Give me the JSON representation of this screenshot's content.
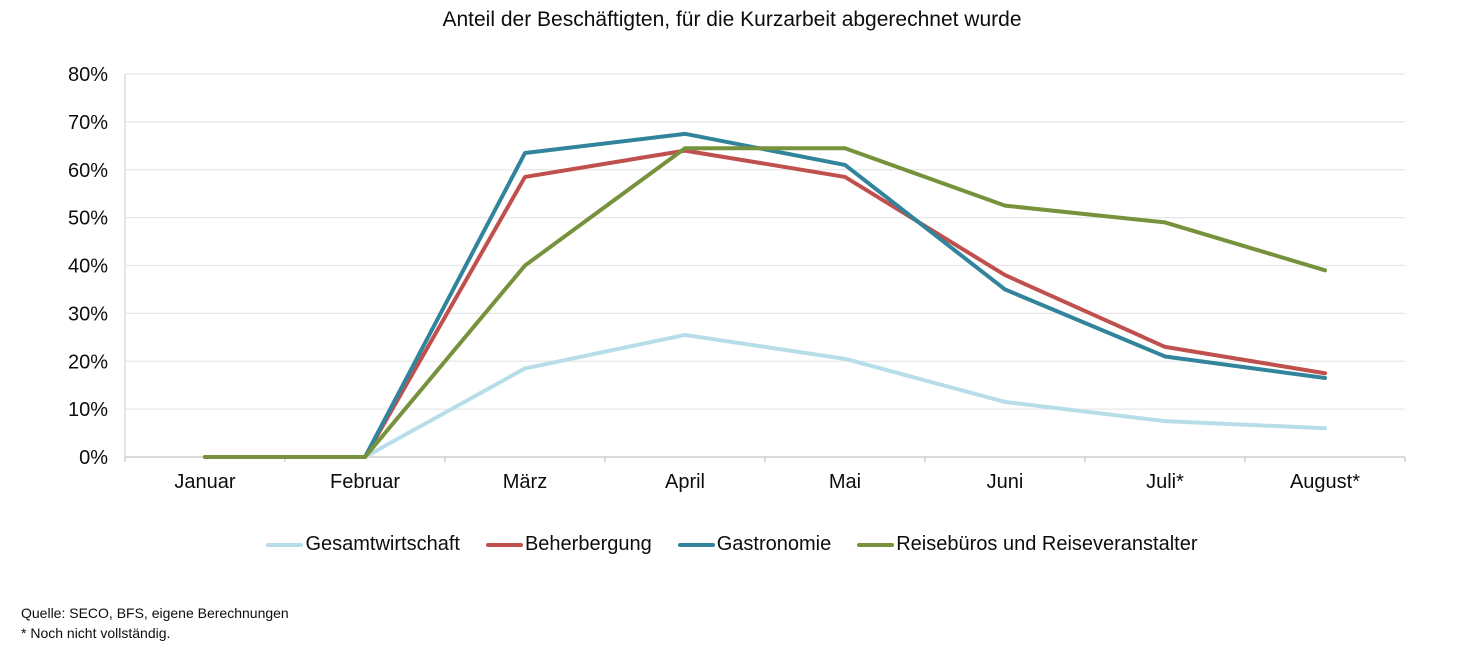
{
  "title": "Anteil der Beschäftigten, für die Kurzarbeit abgerechnet wurde",
  "chart_data": {
    "type": "line",
    "title": "Anteil der Beschäftigten, für die Kurzarbeit abgerechnet wurde",
    "categories": [
      "Januar",
      "Februar",
      "März",
      "April",
      "Mai",
      "Juni",
      "Juli*",
      "August*"
    ],
    "series": [
      {
        "name": "Gesamtwirtschaft",
        "color": "#b7dee8",
        "values": [
          0,
          0,
          18.5,
          25.5,
          20.5,
          11.5,
          7.5,
          6
        ]
      },
      {
        "name": "Beherbergung",
        "color": "#c0504d",
        "values": [
          0,
          0,
          58.5,
          64,
          58.5,
          38,
          23,
          17.5
        ]
      },
      {
        "name": "Gastronomie",
        "color": "#31849b",
        "values": [
          0,
          0,
          63.5,
          67.5,
          61,
          35,
          21,
          16.5
        ]
      },
      {
        "name": "Reisebüros und Reiseveranstalter",
        "color": "#76923c",
        "values": [
          0,
          0,
          40,
          64.5,
          64.5,
          52.5,
          49,
          39
        ]
      }
    ],
    "ylim": [
      0,
      80
    ],
    "y_tick_step": 10,
    "y_tick_labels": [
      "0%",
      "10%",
      "20%",
      "30%",
      "40%",
      "50%",
      "60%",
      "70%",
      "80%"
    ],
    "grid": true,
    "legend_position": "bottom",
    "grid_color": "#e7e7e7",
    "axis_color": "#c9c9c9"
  },
  "footer": {
    "source": "Quelle: SECO, BFS, eigene Berechnungen",
    "note": "* Noch nicht vollständig."
  }
}
